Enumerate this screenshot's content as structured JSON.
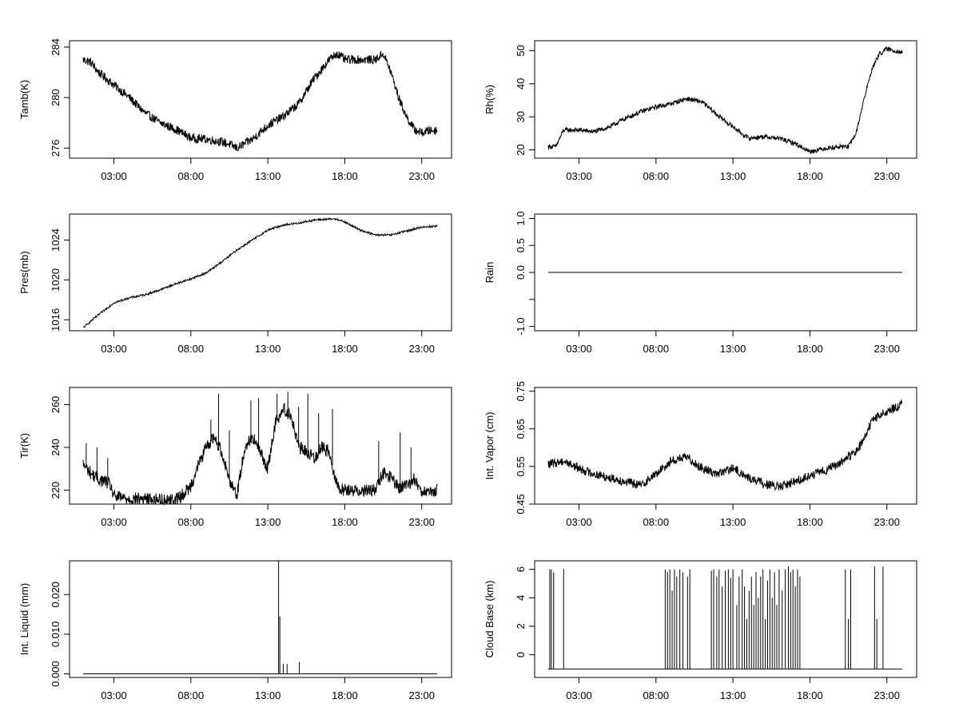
{
  "chart_data": [
    {
      "id": "tamb",
      "type": "line",
      "ylabel": "Tamb(K)",
      "xlabel": "",
      "xlim": [
        0,
        24
      ],
      "ylim": [
        275.2,
        284.5
      ],
      "yticks": [
        276,
        280,
        284
      ],
      "ytick_labels": [
        "276",
        "280",
        "284"
      ],
      "xticks": [
        3,
        8,
        13,
        18,
        23
      ],
      "xtick_labels": [
        "03:00",
        "08:00",
        "13:00",
        "18:00",
        "23:00"
      ],
      "x": [
        1,
        1.5,
        2,
        3,
        4,
        5,
        6,
        7,
        8,
        9,
        10,
        10.5,
        11,
        12,
        13,
        14,
        15,
        16,
        17,
        17.5,
        18,
        19,
        20,
        20.5,
        21,
        21.5,
        22,
        22.5,
        23,
        23.5,
        24
      ],
      "values": [
        283,
        282.8,
        282,
        281,
        280,
        278.8,
        278,
        277.5,
        276.8,
        276.7,
        276.5,
        276.3,
        276,
        276.7,
        277.8,
        278.5,
        279.5,
        281.5,
        283,
        283.5,
        283,
        283,
        283,
        283.5,
        282,
        280,
        278.5,
        277.5,
        277.2,
        277.4,
        277.4
      ],
      "noise": 0.35
    },
    {
      "id": "rh",
      "type": "line",
      "ylabel": "Rh(%)",
      "xlabel": "",
      "xlim": [
        0,
        24
      ],
      "ylim": [
        17.5,
        53
      ],
      "yticks": [
        20,
        30,
        40,
        50
      ],
      "ytick_labels": [
        "20",
        "30",
        "40",
        "50"
      ],
      "xticks": [
        3,
        8,
        13,
        18,
        23
      ],
      "xtick_labels": [
        "03:00",
        "08:00",
        "13:00",
        "18:00",
        "23:00"
      ],
      "x": [
        1,
        1.5,
        2,
        3,
        4,
        5,
        6,
        7,
        8,
        9,
        10,
        11,
        12,
        13,
        14,
        15,
        16,
        17,
        18,
        19,
        20,
        20.5,
        21,
        21.5,
        22,
        22.5,
        23,
        23.5,
        24
      ],
      "values": [
        21,
        21,
        26,
        26,
        25.5,
        27,
        29.5,
        31.5,
        33,
        34,
        35.5,
        34.5,
        30.5,
        27,
        23.5,
        24,
        23.5,
        22,
        19.5,
        20.5,
        21,
        21,
        25,
        35,
        44,
        49,
        50.5,
        50,
        49.5
      ],
      "noise": 0.7
    },
    {
      "id": "pres",
      "type": "line",
      "ylabel": "Pres(mb)",
      "xlabel": "",
      "xlim": [
        0,
        24
      ],
      "ylim": [
        1014.9,
        1026.6
      ],
      "yticks": [
        1016,
        1020,
        1024
      ],
      "ytick_labels": [
        "1016",
        "1020",
        "1024"
      ],
      "xticks": [
        3,
        8,
        13,
        18,
        23
      ],
      "xtick_labels": [
        "03:00",
        "08:00",
        "13:00",
        "18:00",
        "23:00"
      ],
      "x": [
        1,
        2,
        3,
        4,
        5,
        6,
        7,
        8,
        9,
        10,
        11,
        12,
        13,
        14,
        15,
        16,
        17,
        17.5,
        18,
        19,
        20,
        21,
        22,
        23,
        24
      ],
      "values": [
        1015.2,
        1016.5,
        1017.7,
        1018.2,
        1018.5,
        1019.0,
        1019.6,
        1020.1,
        1020.7,
        1021.8,
        1023.0,
        1024.0,
        1025.0,
        1025.5,
        1025.7,
        1026.0,
        1026.1,
        1026.1,
        1025.8,
        1025.0,
        1024.5,
        1024.5,
        1024.9,
        1025.3,
        1025.4
      ],
      "noise": 0.1
    },
    {
      "id": "rain",
      "type": "line",
      "ylabel": "Rain",
      "xlabel": "",
      "xlim": [
        0,
        24
      ],
      "ylim": [
        -1.08,
        1.08
      ],
      "yticks": [
        -1.0,
        -0.5,
        0.0,
        0.5,
        1.0
      ],
      "ytick_labels": [
        "-1.0",
        "",
        "0.0",
        "0.5",
        "1.0"
      ],
      "xticks": [
        3,
        8,
        13,
        18,
        23
      ],
      "xtick_labels": [
        "03:00",
        "08:00",
        "13:00",
        "18:00",
        "23:00"
      ],
      "x": [
        1,
        24
      ],
      "values": [
        0,
        0
      ],
      "noise": 0
    },
    {
      "id": "tir",
      "type": "line",
      "ylabel": "Tir(K)",
      "xlabel": "",
      "xlim": [
        0,
        24
      ],
      "ylim": [
        213.5,
        268
      ],
      "yticks": [
        220,
        240,
        260
      ],
      "ytick_labels": [
        "220",
        "240",
        "260"
      ],
      "xticks": [
        3,
        8,
        13,
        18,
        23
      ],
      "xtick_labels": [
        "03:00",
        "08:00",
        "13:00",
        "18:00",
        "23:00"
      ],
      "x": [
        1,
        1.5,
        2,
        2.5,
        2.8,
        3,
        4,
        5,
        6,
        7,
        7.5,
        8,
        8.5,
        9,
        9.5,
        10,
        10.5,
        11,
        11.5,
        12,
        12.5,
        13,
        13.5,
        14,
        14.5,
        15,
        15.5,
        16,
        16.5,
        17,
        17.5,
        18,
        19,
        20,
        20.5,
        21,
        21.5,
        22,
        22.5,
        23,
        23.5,
        24
      ],
      "values": [
        232,
        228,
        225,
        224,
        222,
        217,
        216,
        216,
        215.5,
        215.5,
        218,
        222,
        232,
        240,
        245,
        238,
        225,
        218,
        240,
        245,
        238,
        230,
        252,
        258,
        255,
        240,
        238,
        235,
        240,
        238,
        222,
        220,
        220,
        220,
        228,
        226,
        221,
        222,
        225,
        220,
        218,
        220
      ],
      "noise": 3,
      "spikes": [
        [
          1.2,
          242
        ],
        [
          1.9,
          240
        ],
        [
          2.6,
          235
        ],
        [
          9.3,
          253
        ],
        [
          9.8,
          265
        ],
        [
          10.5,
          248
        ],
        [
          11.9,
          262
        ],
        [
          12.4,
          263
        ],
        [
          13.6,
          265
        ],
        [
          14.3,
          266
        ],
        [
          15.0,
          259
        ],
        [
          15.6,
          265
        ],
        [
          16.3,
          256
        ],
        [
          17.2,
          258
        ],
        [
          20.2,
          243
        ],
        [
          21.6,
          247
        ],
        [
          22.3,
          240
        ]
      ]
    },
    {
      "id": "vapor",
      "type": "line",
      "ylabel": "Int. Vapor (cm)",
      "xlabel": "",
      "xlim": [
        0,
        24
      ],
      "ylim": [
        0.45,
        0.76
      ],
      "yticks": [
        0.45,
        0.55,
        0.65,
        0.75
      ],
      "ytick_labels": [
        "0.45",
        "0.55",
        "0.65",
        "0.75"
      ],
      "xticks": [
        3,
        8,
        13,
        18,
        23
      ],
      "xtick_labels": [
        "03:00",
        "08:00",
        "13:00",
        "18:00",
        "23:00"
      ],
      "x": [
        1,
        2,
        3,
        4,
        5,
        6,
        7,
        8,
        9,
        10,
        11,
        12,
        13,
        14,
        15,
        16,
        17,
        18,
        19,
        20,
        21,
        21.5,
        22,
        22.5,
        23,
        24
      ],
      "values": [
        0.555,
        0.565,
        0.545,
        0.53,
        0.52,
        0.51,
        0.5,
        0.53,
        0.565,
        0.575,
        0.545,
        0.53,
        0.545,
        0.52,
        0.505,
        0.495,
        0.51,
        0.525,
        0.54,
        0.56,
        0.59,
        0.62,
        0.67,
        0.685,
        0.695,
        0.715
      ],
      "noise": 0.012
    },
    {
      "id": "liquid",
      "type": "line",
      "ylabel": "Int. Liquid (mm)",
      "xlabel": "",
      "xlim": [
        0,
        24
      ],
      "ylim": [
        -0.0009,
        0.0285
      ],
      "yticks": [
        0.0,
        0.01,
        0.02
      ],
      "ytick_labels": [
        "0.000",
        "0.010",
        "0.020"
      ],
      "xticks": [
        3,
        8,
        13,
        18,
        23
      ],
      "xtick_labels": [
        "03:00",
        "08:00",
        "13:00",
        "18:00",
        "23:00"
      ],
      "x": [
        1,
        24
      ],
      "values": [
        0,
        0
      ],
      "noise": 0,
      "spikes": [
        [
          13.7,
          0.0285
        ],
        [
          13.78,
          0.0145
        ],
        [
          14.0,
          0.0025
        ],
        [
          14.25,
          0.0025
        ],
        [
          15.05,
          0.003
        ]
      ]
    },
    {
      "id": "cloud",
      "type": "line",
      "ylabel": "Cloud Base (km)",
      "xlabel": "",
      "xlim": [
        0,
        24
      ],
      "ylim": [
        -1.6,
        6.6
      ],
      "yticks": [
        0,
        2,
        4,
        6
      ],
      "ytick_labels": [
        "0",
        "2",
        "4",
        "6"
      ],
      "xticks": [
        3,
        8,
        13,
        18,
        23
      ],
      "xtick_labels": [
        "03:00",
        "08:00",
        "13:00",
        "18:00",
        "23:00"
      ],
      "x": [
        1,
        24
      ],
      "values": [
        -1,
        -1
      ],
      "noise": 0,
      "spikes": [
        [
          1.1,
          6
        ],
        [
          1.2,
          6
        ],
        [
          1.35,
          5.8
        ],
        [
          2.0,
          6
        ],
        [
          8.6,
          6
        ],
        [
          8.75,
          5.8
        ],
        [
          8.9,
          6
        ],
        [
          9.05,
          4.5
        ],
        [
          9.2,
          6
        ],
        [
          9.35,
          5.5
        ],
        [
          9.55,
          6
        ],
        [
          9.75,
          5.8
        ],
        [
          10.05,
          5.5
        ],
        [
          10.2,
          6
        ],
        [
          11.6,
          5.9
        ],
        [
          11.75,
          6
        ],
        [
          11.95,
          5.5
        ],
        [
          12.1,
          6
        ],
        [
          12.3,
          4.8
        ],
        [
          12.5,
          5.9
        ],
        [
          12.7,
          6
        ],
        [
          12.85,
          5.4
        ],
        [
          13.0,
          6
        ],
        [
          13.25,
          3.5
        ],
        [
          13.4,
          5.5
        ],
        [
          13.6,
          6
        ],
        [
          13.75,
          4.8
        ],
        [
          13.9,
          2.5
        ],
        [
          14.05,
          4.5
        ],
        [
          14.2,
          5.5
        ],
        [
          14.35,
          3.5
        ],
        [
          14.5,
          5.8
        ],
        [
          14.65,
          4
        ],
        [
          14.8,
          5.5
        ],
        [
          14.95,
          6
        ],
        [
          15.1,
          2.5
        ],
        [
          15.25,
          5.2
        ],
        [
          15.4,
          6
        ],
        [
          15.55,
          4
        ],
        [
          15.7,
          5.8
        ],
        [
          15.85,
          3.5
        ],
        [
          16.0,
          6
        ],
        [
          16.2,
          4.5
        ],
        [
          16.4,
          6
        ],
        [
          16.6,
          6.2
        ],
        [
          16.75,
          5.8
        ],
        [
          16.9,
          6
        ],
        [
          17.05,
          4.8
        ],
        [
          17.2,
          6
        ],
        [
          17.35,
          5.5
        ],
        [
          20.3,
          6
        ],
        [
          20.5,
          2.5
        ],
        [
          20.65,
          6
        ],
        [
          22.2,
          6.2
        ],
        [
          22.35,
          2.5
        ],
        [
          22.75,
          6.2
        ]
      ]
    }
  ]
}
